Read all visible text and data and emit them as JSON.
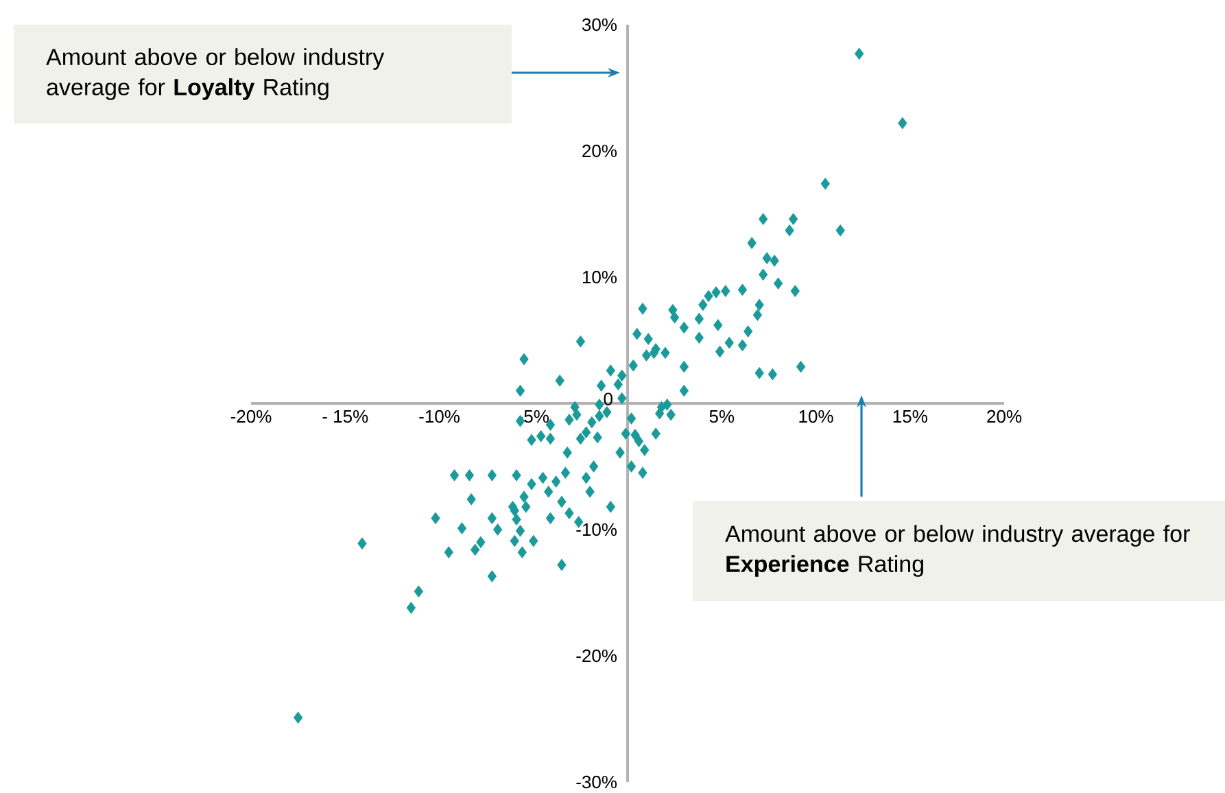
{
  "chart_data": {
    "type": "scatter",
    "marker": "diamond",
    "xlim": [
      -20,
      20
    ],
    "ylim": [
      -30,
      30
    ],
    "xticks": [
      {
        "value": -20,
        "label": "-20%"
      },
      {
        "value": -15,
        "label": "- 15%"
      },
      {
        "value": -10,
        "label": "-10%"
      },
      {
        "value": -5,
        "label": "-5%"
      },
      {
        "value": 5,
        "label": "5%"
      },
      {
        "value": 10,
        "label": "10%"
      },
      {
        "value": 15,
        "label": "15%"
      },
      {
        "value": 20,
        "label": "20%"
      }
    ],
    "yticks": [
      {
        "value": -30,
        "label": "-30%"
      },
      {
        "value": -20,
        "label": "-20%"
      },
      {
        "value": -10,
        "label": "-10%"
      },
      0,
      {
        "value": 10,
        "label": "10%"
      },
      {
        "value": 20,
        "label": "20%"
      },
      {
        "value": 30,
        "label": "30%"
      }
    ],
    "annotations": [
      "Amount above or below industry average for **Loyalty** Rating",
      "Amount above or below industry average for **Experience** Rating"
    ],
    "series": [
      {
        "color": "#1a9a9a",
        "x": [
          12.3,
          14.6,
          10.5,
          11.3,
          7.2,
          8.8,
          8.6,
          6.6,
          7.4,
          7.8,
          7.2,
          8.0,
          8.9,
          6.1,
          4.7,
          4.3,
          5.2,
          4.0,
          3.8,
          4.8,
          7.0,
          6.9,
          6.4,
          6.1,
          5.4,
          4.9,
          7.0,
          9.2,
          7.7,
          3.8,
          2.5,
          2.4,
          3.0,
          0.8,
          0.5,
          1.1,
          1.5,
          2.0,
          1.4,
          1.0,
          0.3,
          3.0,
          3.0,
          -2.5,
          -3.6,
          -5.5,
          -5.7,
          -0.9,
          -0.5,
          -0.3,
          -1.4,
          -0.3,
          -1.5,
          -1.1,
          -1.5,
          2.1,
          1.8,
          2.3,
          1.7,
          -2.8,
          -2.7,
          -1.9,
          -2.2,
          -2.5,
          -3.1,
          -4.1,
          -4.1,
          -4.6,
          -5.7,
          -1.6,
          -0.1,
          0.2,
          0.4,
          0.6,
          1.5,
          0.9,
          0.2,
          0.8,
          -0.4,
          -1.8,
          -3.3,
          -3.2,
          -5.1,
          -4.5,
          -5.5,
          -6.1,
          -2.2,
          -2.0,
          -3.8,
          -5.4,
          -0.9,
          -3.5,
          -3.1,
          -4.1,
          -2.6,
          -7.2,
          -9.2,
          -8.4,
          -8.3,
          -5.9,
          -5.1,
          -4.2,
          -6.0,
          -7.2,
          -6.9,
          -5.9,
          -5.7,
          -6.0,
          -5.0,
          -5.6,
          -7.8,
          -8.1,
          -9.5,
          -10.2,
          -8.8,
          -7.2,
          -3.5,
          -11.1,
          -11.5,
          -14.1,
          -17.5
        ],
        "values": [
          27.7,
          22.2,
          17.4,
          13.7,
          14.6,
          14.6,
          13.7,
          12.7,
          11.5,
          11.3,
          10.2,
          9.5,
          8.9,
          9.0,
          8.8,
          8.5,
          8.9,
          7.8,
          6.7,
          6.2,
          7.8,
          7.0,
          5.7,
          4.6,
          4.8,
          4.1,
          2.4,
          2.9,
          2.3,
          5.2,
          6.8,
          7.4,
          6.0,
          7.5,
          5.5,
          5.1,
          4.3,
          4.0,
          4.0,
          3.8,
          3.0,
          2.9,
          1.0,
          4.9,
          1.8,
          3.5,
          1.0,
          2.6,
          1.5,
          2.2,
          1.4,
          0.4,
          -0.1,
          -0.7,
          -1.0,
          -0.1,
          -0.3,
          -0.9,
          -0.8,
          -0.3,
          -0.9,
          -1.5,
          -2.3,
          -2.8,
          -1.3,
          -1.7,
          -2.8,
          -2.6,
          -1.4,
          -2.7,
          -2.4,
          -1.2,
          -2.5,
          -3.0,
          -2.4,
          -3.7,
          -5.0,
          -5.5,
          -3.9,
          -5.0,
          -5.5,
          -3.9,
          -2.9,
          -5.9,
          -7.4,
          -8.2,
          -5.9,
          -7.0,
          -6.2,
          -8.2,
          -8.2,
          -7.8,
          -8.7,
          -9.1,
          -9.4,
          -5.7,
          -5.7,
          -5.7,
          -7.6,
          -5.7,
          -6.4,
          -7.0,
          -8.5,
          -9.1,
          -10.0,
          -9.2,
          -10.1,
          -10.9,
          -10.9,
          -11.8,
          -11.0,
          -11.6,
          -11.8,
          -9.1,
          -9.9,
          -13.7,
          -12.8,
          -14.9,
          -16.2,
          -11.1,
          -24.9
        ]
      }
    ]
  }
}
